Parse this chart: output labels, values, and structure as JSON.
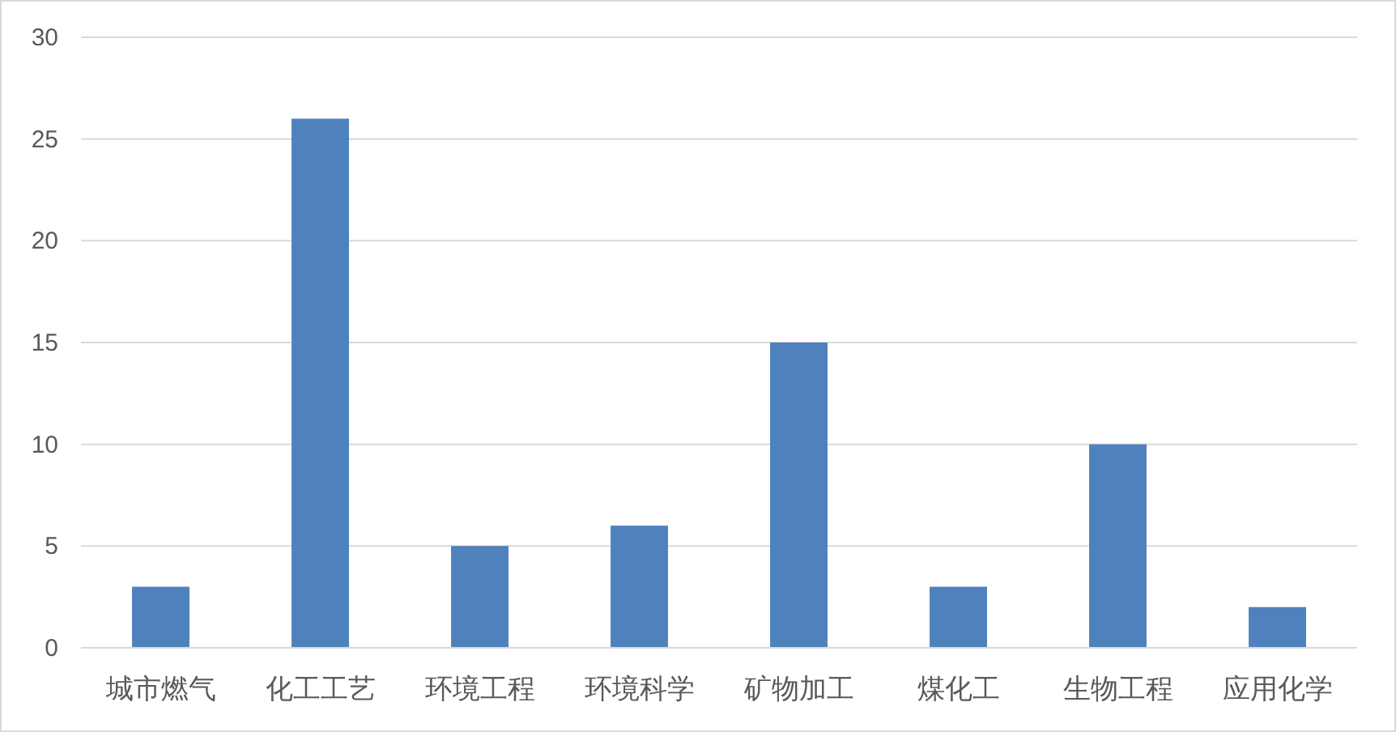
{
  "chart_data": {
    "type": "bar",
    "categories": [
      "城市燃气",
      "化工工艺",
      "环境工程",
      "环境科学",
      "矿物加工",
      "煤化工",
      "生物工程",
      "应用化学"
    ],
    "values": [
      3,
      26,
      5,
      6,
      15,
      3,
      10,
      2
    ],
    "color": "#4f81bd",
    "ylim": [
      0,
      30
    ],
    "yticks": [
      0,
      5,
      10,
      15,
      20,
      25,
      30
    ],
    "grid": "y"
  }
}
